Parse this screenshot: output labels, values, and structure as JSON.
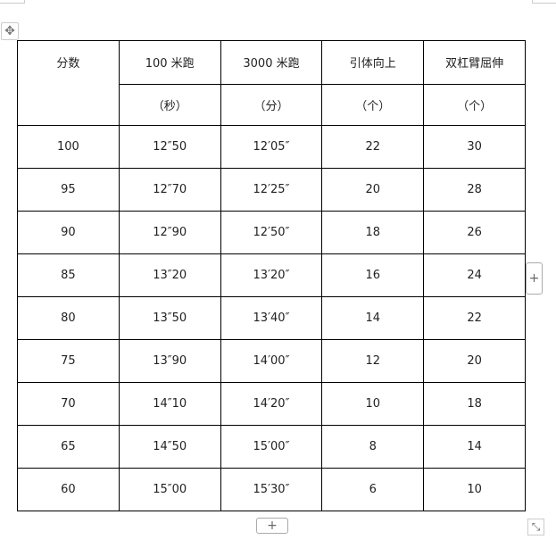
{
  "table": {
    "headers": [
      "分数",
      "100 米跑",
      "3000 米跑",
      "引体向上",
      "双杠臂屈伸"
    ],
    "units": [
      "（秒）",
      "（分）",
      "（个）",
      "（个）"
    ],
    "rows": [
      [
        "100",
        "12″50",
        "12′05″",
        "22",
        "30"
      ],
      [
        "95",
        "12″70",
        "12′25″",
        "20",
        "28"
      ],
      [
        "90",
        "12″90",
        "12′50″",
        "18",
        "26"
      ],
      [
        "85",
        "13″20",
        "13′20″",
        "16",
        "24"
      ],
      [
        "80",
        "13″50",
        "13′40″",
        "14",
        "22"
      ],
      [
        "75",
        "13″90",
        "14′00″",
        "12",
        "20"
      ],
      [
        "70",
        "14″10",
        "14′20″",
        "10",
        "18"
      ],
      [
        "65",
        "14″50",
        "15′00″",
        "8",
        "14"
      ],
      [
        "60",
        "15″00",
        "15′30″",
        "6",
        "10"
      ]
    ]
  },
  "controls": {
    "move_icon": "✥",
    "add_icon": "+",
    "resize_icon": "⤡"
  }
}
